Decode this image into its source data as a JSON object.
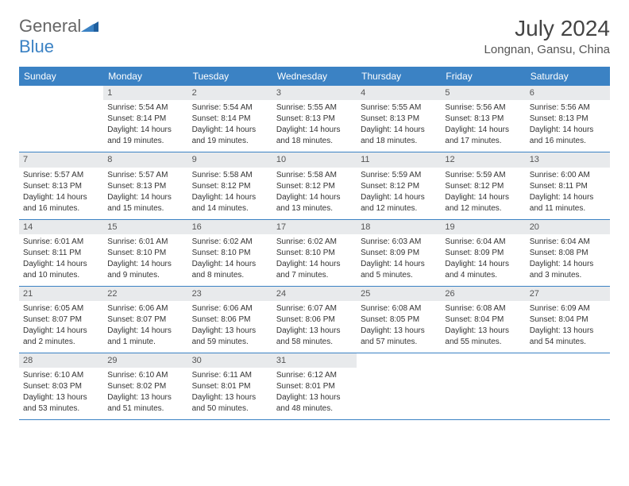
{
  "logo": {
    "part1": "General",
    "part2": "Blue"
  },
  "title": "July 2024",
  "location": "Longnan, Gansu, China",
  "weekdays": [
    "Sunday",
    "Monday",
    "Tuesday",
    "Wednesday",
    "Thursday",
    "Friday",
    "Saturday"
  ],
  "colors": {
    "header_bg": "#3b82c4",
    "daynum_bg": "#e8eaec",
    "week_border": "#3b82c4",
    "text": "#333333"
  },
  "weeks": [
    [
      {
        "n": "",
        "sr": "",
        "ss": "",
        "dl1": "",
        "dl2": ""
      },
      {
        "n": "1",
        "sr": "Sunrise: 5:54 AM",
        "ss": "Sunset: 8:14 PM",
        "dl1": "Daylight: 14 hours",
        "dl2": "and 19 minutes."
      },
      {
        "n": "2",
        "sr": "Sunrise: 5:54 AM",
        "ss": "Sunset: 8:14 PM",
        "dl1": "Daylight: 14 hours",
        "dl2": "and 19 minutes."
      },
      {
        "n": "3",
        "sr": "Sunrise: 5:55 AM",
        "ss": "Sunset: 8:13 PM",
        "dl1": "Daylight: 14 hours",
        "dl2": "and 18 minutes."
      },
      {
        "n": "4",
        "sr": "Sunrise: 5:55 AM",
        "ss": "Sunset: 8:13 PM",
        "dl1": "Daylight: 14 hours",
        "dl2": "and 18 minutes."
      },
      {
        "n": "5",
        "sr": "Sunrise: 5:56 AM",
        "ss": "Sunset: 8:13 PM",
        "dl1": "Daylight: 14 hours",
        "dl2": "and 17 minutes."
      },
      {
        "n": "6",
        "sr": "Sunrise: 5:56 AM",
        "ss": "Sunset: 8:13 PM",
        "dl1": "Daylight: 14 hours",
        "dl2": "and 16 minutes."
      }
    ],
    [
      {
        "n": "7",
        "sr": "Sunrise: 5:57 AM",
        "ss": "Sunset: 8:13 PM",
        "dl1": "Daylight: 14 hours",
        "dl2": "and 16 minutes."
      },
      {
        "n": "8",
        "sr": "Sunrise: 5:57 AM",
        "ss": "Sunset: 8:13 PM",
        "dl1": "Daylight: 14 hours",
        "dl2": "and 15 minutes."
      },
      {
        "n": "9",
        "sr": "Sunrise: 5:58 AM",
        "ss": "Sunset: 8:12 PM",
        "dl1": "Daylight: 14 hours",
        "dl2": "and 14 minutes."
      },
      {
        "n": "10",
        "sr": "Sunrise: 5:58 AM",
        "ss": "Sunset: 8:12 PM",
        "dl1": "Daylight: 14 hours",
        "dl2": "and 13 minutes."
      },
      {
        "n": "11",
        "sr": "Sunrise: 5:59 AM",
        "ss": "Sunset: 8:12 PM",
        "dl1": "Daylight: 14 hours",
        "dl2": "and 12 minutes."
      },
      {
        "n": "12",
        "sr": "Sunrise: 5:59 AM",
        "ss": "Sunset: 8:12 PM",
        "dl1": "Daylight: 14 hours",
        "dl2": "and 12 minutes."
      },
      {
        "n": "13",
        "sr": "Sunrise: 6:00 AM",
        "ss": "Sunset: 8:11 PM",
        "dl1": "Daylight: 14 hours",
        "dl2": "and 11 minutes."
      }
    ],
    [
      {
        "n": "14",
        "sr": "Sunrise: 6:01 AM",
        "ss": "Sunset: 8:11 PM",
        "dl1": "Daylight: 14 hours",
        "dl2": "and 10 minutes."
      },
      {
        "n": "15",
        "sr": "Sunrise: 6:01 AM",
        "ss": "Sunset: 8:10 PM",
        "dl1": "Daylight: 14 hours",
        "dl2": "and 9 minutes."
      },
      {
        "n": "16",
        "sr": "Sunrise: 6:02 AM",
        "ss": "Sunset: 8:10 PM",
        "dl1": "Daylight: 14 hours",
        "dl2": "and 8 minutes."
      },
      {
        "n": "17",
        "sr": "Sunrise: 6:02 AM",
        "ss": "Sunset: 8:10 PM",
        "dl1": "Daylight: 14 hours",
        "dl2": "and 7 minutes."
      },
      {
        "n": "18",
        "sr": "Sunrise: 6:03 AM",
        "ss": "Sunset: 8:09 PM",
        "dl1": "Daylight: 14 hours",
        "dl2": "and 5 minutes."
      },
      {
        "n": "19",
        "sr": "Sunrise: 6:04 AM",
        "ss": "Sunset: 8:09 PM",
        "dl1": "Daylight: 14 hours",
        "dl2": "and 4 minutes."
      },
      {
        "n": "20",
        "sr": "Sunrise: 6:04 AM",
        "ss": "Sunset: 8:08 PM",
        "dl1": "Daylight: 14 hours",
        "dl2": "and 3 minutes."
      }
    ],
    [
      {
        "n": "21",
        "sr": "Sunrise: 6:05 AM",
        "ss": "Sunset: 8:07 PM",
        "dl1": "Daylight: 14 hours",
        "dl2": "and 2 minutes."
      },
      {
        "n": "22",
        "sr": "Sunrise: 6:06 AM",
        "ss": "Sunset: 8:07 PM",
        "dl1": "Daylight: 14 hours",
        "dl2": "and 1 minute."
      },
      {
        "n": "23",
        "sr": "Sunrise: 6:06 AM",
        "ss": "Sunset: 8:06 PM",
        "dl1": "Daylight: 13 hours",
        "dl2": "and 59 minutes."
      },
      {
        "n": "24",
        "sr": "Sunrise: 6:07 AM",
        "ss": "Sunset: 8:06 PM",
        "dl1": "Daylight: 13 hours",
        "dl2": "and 58 minutes."
      },
      {
        "n": "25",
        "sr": "Sunrise: 6:08 AM",
        "ss": "Sunset: 8:05 PM",
        "dl1": "Daylight: 13 hours",
        "dl2": "and 57 minutes."
      },
      {
        "n": "26",
        "sr": "Sunrise: 6:08 AM",
        "ss": "Sunset: 8:04 PM",
        "dl1": "Daylight: 13 hours",
        "dl2": "and 55 minutes."
      },
      {
        "n": "27",
        "sr": "Sunrise: 6:09 AM",
        "ss": "Sunset: 8:04 PM",
        "dl1": "Daylight: 13 hours",
        "dl2": "and 54 minutes."
      }
    ],
    [
      {
        "n": "28",
        "sr": "Sunrise: 6:10 AM",
        "ss": "Sunset: 8:03 PM",
        "dl1": "Daylight: 13 hours",
        "dl2": "and 53 minutes."
      },
      {
        "n": "29",
        "sr": "Sunrise: 6:10 AM",
        "ss": "Sunset: 8:02 PM",
        "dl1": "Daylight: 13 hours",
        "dl2": "and 51 minutes."
      },
      {
        "n": "30",
        "sr": "Sunrise: 6:11 AM",
        "ss": "Sunset: 8:01 PM",
        "dl1": "Daylight: 13 hours",
        "dl2": "and 50 minutes."
      },
      {
        "n": "31",
        "sr": "Sunrise: 6:12 AM",
        "ss": "Sunset: 8:01 PM",
        "dl1": "Daylight: 13 hours",
        "dl2": "and 48 minutes."
      },
      {
        "n": "",
        "sr": "",
        "ss": "",
        "dl1": "",
        "dl2": ""
      },
      {
        "n": "",
        "sr": "",
        "ss": "",
        "dl1": "",
        "dl2": ""
      },
      {
        "n": "",
        "sr": "",
        "ss": "",
        "dl1": "",
        "dl2": ""
      }
    ]
  ]
}
